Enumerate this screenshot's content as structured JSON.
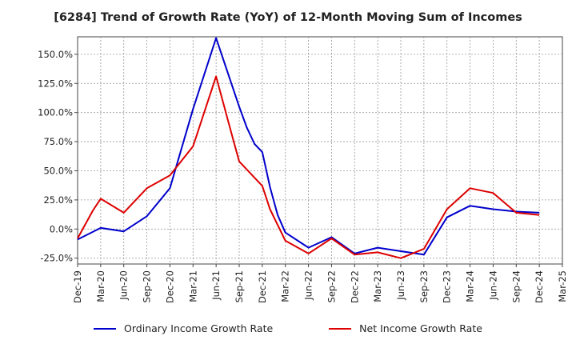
{
  "chart_data": {
    "type": "line",
    "title": "[6284]  Trend of Growth Rate (YoY) of 12-Month Moving Sum of Incomes",
    "xlabel": "",
    "ylabel": "",
    "x_ticks": [
      "Dec-19",
      "Mar-20",
      "Jun-20",
      "Sep-20",
      "Dec-20",
      "Mar-21",
      "Jun-21",
      "Sep-21",
      "Dec-21",
      "Mar-22",
      "Jun-22",
      "Sep-22",
      "Dec-22",
      "Mar-23",
      "Jun-23",
      "Sep-23",
      "Dec-23",
      "Mar-24",
      "Jun-24",
      "Sep-24",
      "Dec-24",
      "Mar-25"
    ],
    "y_ticks": [
      -25,
      0,
      25,
      50,
      75,
      100,
      125,
      150
    ],
    "y_tick_labels": [
      "-25.0%",
      "0.0%",
      "25.0%",
      "50.0%",
      "75.0%",
      "100.0%",
      "125.0%",
      "150.0%"
    ],
    "ylim": [
      -30,
      165
    ],
    "grid": true,
    "legend_position": "bottom",
    "series": [
      {
        "name": "Ordinary Income Growth Rate",
        "color": "#0000cc",
        "points": [
          [
            "Dec-19",
            -9
          ],
          [
            "Mar-20",
            1
          ],
          [
            "Jun-20",
            -2
          ],
          [
            "Sep-20",
            11
          ],
          [
            "Dec-20",
            35
          ],
          [
            "Mar-21",
            103
          ],
          [
            "Jun-21",
            164
          ],
          [
            "Sep-21",
            105
          ],
          [
            "Oct-21",
            87
          ],
          [
            "Nov-21",
            73
          ],
          [
            "Dec-21",
            66
          ],
          [
            "Jan-22",
            36
          ],
          [
            "Feb-22",
            12
          ],
          [
            "Mar-22",
            -3
          ],
          [
            "Jun-22",
            -16
          ],
          [
            "Sep-22",
            -7
          ],
          [
            "Dec-22",
            -21
          ],
          [
            "Mar-23",
            -16
          ],
          [
            "Jun-23",
            -19
          ],
          [
            "Sep-23",
            -22
          ],
          [
            "Dec-23",
            10
          ],
          [
            "Mar-24",
            20
          ],
          [
            "Jun-24",
            17
          ],
          [
            "Sep-24",
            15
          ],
          [
            "Dec-24",
            14
          ]
        ]
      },
      {
        "name": "Net Income Growth Rate",
        "color": "#dd0000",
        "points": [
          [
            "Dec-19",
            -8
          ],
          [
            "Feb-20",
            16
          ],
          [
            "Mar-20",
            26
          ],
          [
            "Jun-20",
            14
          ],
          [
            "Sep-20",
            35
          ],
          [
            "Dec-20",
            46
          ],
          [
            "Mar-21",
            71
          ],
          [
            "Jun-21",
            131
          ],
          [
            "Aug-21",
            82
          ],
          [
            "Sep-21",
            58
          ],
          [
            "Dec-21",
            37
          ],
          [
            "Jan-22",
            17
          ],
          [
            "Mar-22",
            -10
          ],
          [
            "Jun-22",
            -21
          ],
          [
            "Sep-22",
            -8
          ],
          [
            "Dec-22",
            -22
          ],
          [
            "Mar-23",
            -20
          ],
          [
            "Jun-23",
            -25
          ],
          [
            "Sep-23",
            -17
          ],
          [
            "Dec-23",
            17
          ],
          [
            "Mar-24",
            35
          ],
          [
            "Jun-24",
            31
          ],
          [
            "Sep-24",
            14
          ],
          [
            "Dec-24",
            12
          ]
        ]
      }
    ]
  }
}
